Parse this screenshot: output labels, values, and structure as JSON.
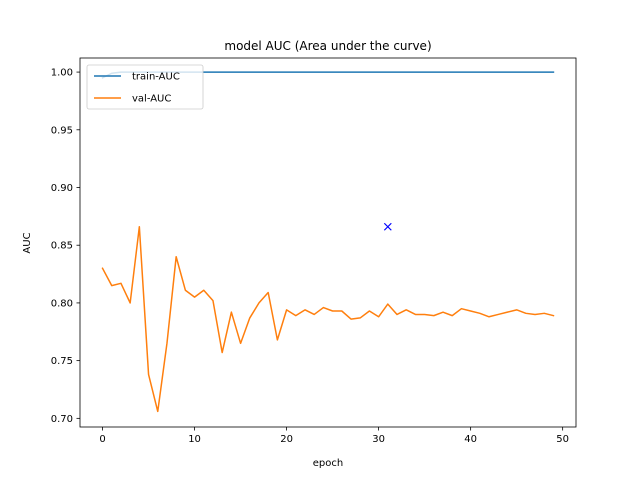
{
  "chart_data": {
    "type": "line",
    "title": "model AUC (Area under the curve)",
    "xlabel": "epoch",
    "ylabel": "AUC",
    "xlim": [
      -2.45,
      51.45
    ],
    "ylim": [
      0.6925,
      1.0122
    ],
    "xticks": [
      0,
      10,
      20,
      30,
      40,
      50
    ],
    "yticks": [
      0.7,
      0.75,
      0.8,
      0.85,
      0.9,
      0.95,
      1.0
    ],
    "ytick_labels": [
      "0.70",
      "0.75",
      "0.80",
      "0.85",
      "0.90",
      "0.95",
      "1.00"
    ],
    "grid": false,
    "legend_position": "upper-left",
    "x": [
      0,
      1,
      2,
      3,
      4,
      5,
      6,
      7,
      8,
      9,
      10,
      11,
      12,
      13,
      14,
      15,
      16,
      17,
      18,
      19,
      20,
      21,
      22,
      23,
      24,
      25,
      26,
      27,
      28,
      29,
      30,
      31,
      32,
      33,
      34,
      35,
      36,
      37,
      38,
      39,
      40,
      41,
      42,
      43,
      44,
      45,
      46,
      47,
      48,
      49
    ],
    "series": [
      {
        "name": "train-AUC",
        "color": "#1f77b4",
        "values": [
          0.995,
          0.999,
          1,
          1,
          1,
          1,
          1,
          1,
          1,
          1,
          1,
          1,
          1,
          1,
          1,
          1,
          1,
          1,
          1,
          1,
          1,
          1,
          1,
          1,
          1,
          1,
          1,
          1,
          1,
          1,
          1,
          1,
          1,
          1,
          1,
          1,
          1,
          1,
          1,
          1,
          1,
          1,
          1,
          1,
          1,
          1,
          1,
          1,
          1,
          1
        ]
      },
      {
        "name": "val-AUC",
        "color": "#ff7f0e",
        "values": [
          0.83,
          0.815,
          0.817,
          0.8,
          0.866,
          0.738,
          0.706,
          0.765,
          0.84,
          0.811,
          0.805,
          0.811,
          0.802,
          0.757,
          0.792,
          0.765,
          0.787,
          0.8,
          0.809,
          0.768,
          0.794,
          0.789,
          0.794,
          0.79,
          0.796,
          0.793,
          0.793,
          0.786,
          0.787,
          0.793,
          0.788,
          0.799,
          0.79,
          0.794,
          0.79,
          0.79,
          0.789,
          0.792,
          0.789,
          0.795,
          0.793,
          0.791,
          0.788,
          0.79,
          0.792,
          0.794,
          0.791,
          0.79,
          0.791,
          0.789
        ]
      }
    ],
    "markers": [
      {
        "x": 31,
        "y": 0.866,
        "symbol": "x",
        "color": "#0000ff"
      }
    ]
  }
}
